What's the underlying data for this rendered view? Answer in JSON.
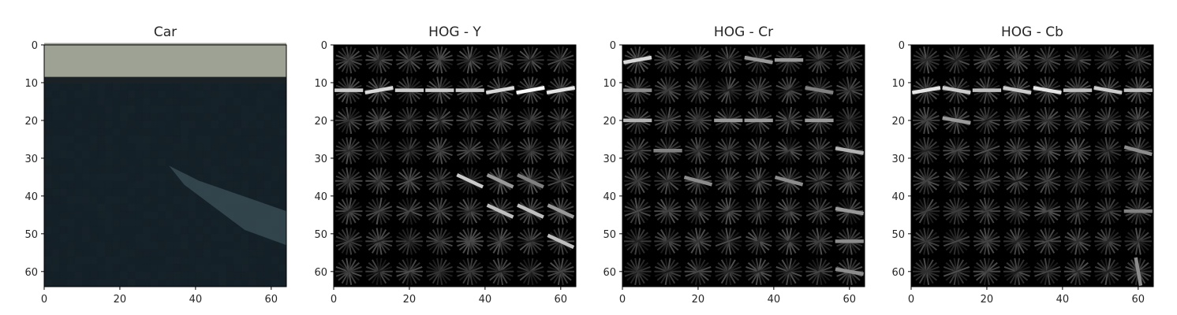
{
  "chart_data": [
    {
      "type": "heatmap",
      "title": "Car",
      "content": "photo",
      "xlim": [
        0,
        64
      ],
      "ylim": [
        64,
        0
      ],
      "xticks": [
        0,
        20,
        40,
        60
      ],
      "yticks": [
        0,
        10,
        20,
        30,
        40,
        50,
        60
      ],
      "grid": false,
      "colors": {
        "roof": "#9ea294",
        "edge": "#1a2226",
        "body": "#152128",
        "reflection": "#3c5058"
      }
    },
    {
      "type": "heatmap",
      "title": "HOG - Y",
      "content": "hog",
      "colormap": "gray",
      "xlim": [
        0,
        64
      ],
      "ylim": [
        64,
        0
      ],
      "xticks": [
        0,
        20,
        40,
        60
      ],
      "yticks": [
        0,
        10,
        20,
        30,
        40,
        50,
        60
      ],
      "grid": false,
      "cells": {
        "rows": 8,
        "cols": 8,
        "cell_size": 8
      },
      "highlights": [
        {
          "row": 1,
          "col": 0,
          "angle": 0,
          "intensity": 0.8
        },
        {
          "row": 1,
          "col": 1,
          "angle": -10,
          "intensity": 0.85
        },
        {
          "row": 1,
          "col": 2,
          "angle": 0,
          "intensity": 0.8
        },
        {
          "row": 1,
          "col": 3,
          "angle": 0,
          "intensity": 0.8
        },
        {
          "row": 1,
          "col": 4,
          "angle": 0,
          "intensity": 0.8
        },
        {
          "row": 1,
          "col": 5,
          "angle": -10,
          "intensity": 0.85
        },
        {
          "row": 1,
          "col": 6,
          "angle": -10,
          "intensity": 1.0
        },
        {
          "row": 1,
          "col": 7,
          "angle": -10,
          "intensity": 0.9
        },
        {
          "row": 4,
          "col": 4,
          "angle": 25,
          "intensity": 0.8
        },
        {
          "row": 4,
          "col": 5,
          "angle": 25,
          "intensity": 0.6
        },
        {
          "row": 4,
          "col": 6,
          "angle": 25,
          "intensity": 0.5
        },
        {
          "row": 5,
          "col": 5,
          "angle": 25,
          "intensity": 0.75
        },
        {
          "row": 5,
          "col": 6,
          "angle": 25,
          "intensity": 0.75
        },
        {
          "row": 5,
          "col": 7,
          "angle": 25,
          "intensity": 0.6
        },
        {
          "row": 6,
          "col": 7,
          "angle": 25,
          "intensity": 0.75
        }
      ]
    },
    {
      "type": "heatmap",
      "title": "HOG - Cr",
      "content": "hog",
      "colormap": "gray",
      "xlim": [
        0,
        64
      ],
      "ylim": [
        64,
        0
      ],
      "xticks": [
        0,
        20,
        40,
        60
      ],
      "yticks": [
        0,
        10,
        20,
        30,
        40,
        50,
        60
      ],
      "grid": false,
      "cells": {
        "rows": 8,
        "cols": 8,
        "cell_size": 8
      },
      "highlights": [
        {
          "row": 0,
          "col": 0,
          "angle": -10,
          "intensity": 0.85
        },
        {
          "row": 0,
          "col": 4,
          "angle": 10,
          "intensity": 0.6
        },
        {
          "row": 0,
          "col": 5,
          "angle": 0,
          "intensity": 0.6
        },
        {
          "row": 1,
          "col": 0,
          "angle": 0,
          "intensity": 0.55
        },
        {
          "row": 1,
          "col": 6,
          "angle": 10,
          "intensity": 0.5
        },
        {
          "row": 2,
          "col": 0,
          "angle": 0,
          "intensity": 0.7
        },
        {
          "row": 2,
          "col": 3,
          "angle": 0,
          "intensity": 0.6
        },
        {
          "row": 2,
          "col": 4,
          "angle": 0,
          "intensity": 0.6
        },
        {
          "row": 2,
          "col": 6,
          "angle": 0,
          "intensity": 0.6
        },
        {
          "row": 3,
          "col": 1,
          "angle": 0,
          "intensity": 0.5
        },
        {
          "row": 3,
          "col": 7,
          "angle": 10,
          "intensity": 0.7
        },
        {
          "row": 4,
          "col": 2,
          "angle": 15,
          "intensity": 0.55
        },
        {
          "row": 4,
          "col": 5,
          "angle": 15,
          "intensity": 0.55
        },
        {
          "row": 5,
          "col": 7,
          "angle": 10,
          "intensity": 0.6
        },
        {
          "row": 6,
          "col": 7,
          "angle": 0,
          "intensity": 0.55
        },
        {
          "row": 7,
          "col": 7,
          "angle": 10,
          "intensity": 0.55
        }
      ]
    },
    {
      "type": "heatmap",
      "title": "HOG - Cb",
      "content": "hog",
      "colormap": "gray",
      "xlim": [
        0,
        64
      ],
      "ylim": [
        64,
        0
      ],
      "xticks": [
        0,
        20,
        40,
        60
      ],
      "yticks": [
        0,
        10,
        20,
        30,
        40,
        50,
        60
      ],
      "grid": false,
      "cells": {
        "rows": 8,
        "cols": 8,
        "cell_size": 8
      },
      "highlights": [
        {
          "row": 1,
          "col": 0,
          "angle": -10,
          "intensity": 0.9
        },
        {
          "row": 1,
          "col": 1,
          "angle": 10,
          "intensity": 0.8
        },
        {
          "row": 1,
          "col": 2,
          "angle": 0,
          "intensity": 0.75
        },
        {
          "row": 1,
          "col": 3,
          "angle": 10,
          "intensity": 0.8
        },
        {
          "row": 1,
          "col": 4,
          "angle": 10,
          "intensity": 0.9
        },
        {
          "row": 1,
          "col": 5,
          "angle": 0,
          "intensity": 0.75
        },
        {
          "row": 1,
          "col": 6,
          "angle": 10,
          "intensity": 0.8
        },
        {
          "row": 1,
          "col": 7,
          "angle": 0,
          "intensity": 0.75
        },
        {
          "row": 2,
          "col": 1,
          "angle": 10,
          "intensity": 0.6
        },
        {
          "row": 3,
          "col": 7,
          "angle": 15,
          "intensity": 0.55
        },
        {
          "row": 5,
          "col": 7,
          "angle": 0,
          "intensity": 0.5
        },
        {
          "row": 7,
          "col": 7,
          "angle": 80,
          "intensity": 0.55
        }
      ]
    }
  ]
}
